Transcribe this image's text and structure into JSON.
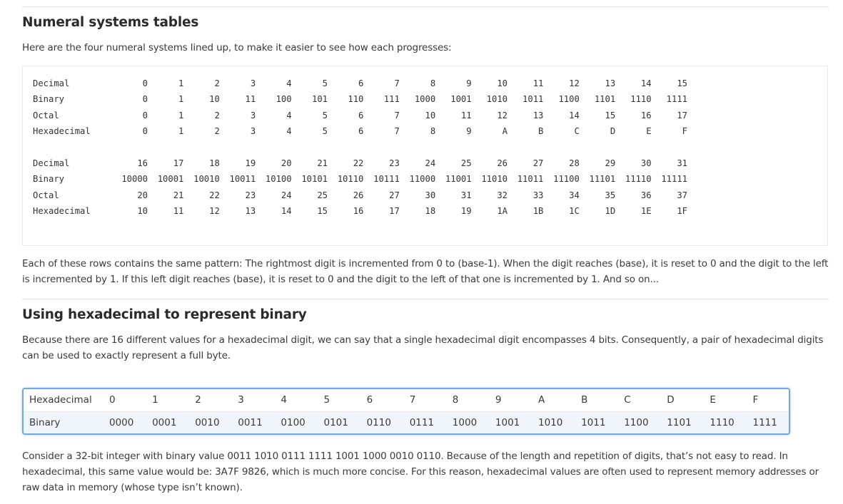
{
  "sections": {
    "numeral": {
      "heading": "Numeral systems tables",
      "intro": "Here are the four numeral systems lined up, to make it easier to see how each progresses:",
      "blocks": [
        {
          "rows": [
            {
              "label": "Decimal",
              "cells": [
                "0",
                "1",
                "2",
                "3",
                "4",
                "5",
                "6",
                "7",
                "8",
                "9",
                "10",
                "11",
                "12",
                "13",
                "14",
                "15"
              ]
            },
            {
              "label": "Binary",
              "cells": [
                "0",
                "1",
                "10",
                "11",
                "100",
                "101",
                "110",
                "111",
                "1000",
                "1001",
                "1010",
                "1011",
                "1100",
                "1101",
                "1110",
                "1111"
              ]
            },
            {
              "label": "Octal",
              "cells": [
                "0",
                "1",
                "2",
                "3",
                "4",
                "5",
                "6",
                "7",
                "10",
                "11",
                "12",
                "13",
                "14",
                "15",
                "16",
                "17"
              ]
            },
            {
              "label": "Hexadecimal",
              "cells": [
                "0",
                "1",
                "2",
                "3",
                "4",
                "5",
                "6",
                "7",
                "8",
                "9",
                "A",
                "B",
                "C",
                "D",
                "E",
                "F"
              ]
            }
          ]
        },
        {
          "rows": [
            {
              "label": "Decimal",
              "cells": [
                "16",
                "17",
                "18",
                "19",
                "20",
                "21",
                "22",
                "23",
                "24",
                "25",
                "26",
                "27",
                "28",
                "29",
                "30",
                "31"
              ]
            },
            {
              "label": "Binary",
              "cells": [
                "10000",
                "10001",
                "10010",
                "10011",
                "10100",
                "10101",
                "10110",
                "10111",
                "11000",
                "11001",
                "11010",
                "11011",
                "11100",
                "11101",
                "11110",
                "11111"
              ]
            },
            {
              "label": "Octal",
              "cells": [
                "20",
                "21",
                "22",
                "23",
                "24",
                "25",
                "26",
                "27",
                "30",
                "31",
                "32",
                "33",
                "34",
                "35",
                "36",
                "37"
              ]
            },
            {
              "label": "Hexadecimal",
              "cells": [
                "10",
                "11",
                "12",
                "13",
                "14",
                "15",
                "16",
                "17",
                "18",
                "19",
                "1A",
                "1B",
                "1C",
                "1D",
                "1E",
                "1F"
              ]
            }
          ]
        }
      ],
      "explanation": "Each of these rows contains the same pattern: The rightmost digit is incremented from 0 to (base-1). When the digit reaches (base), it is reset to 0 and the digit to the left is incremented by 1. If this left digit reaches (base), it is reset to 0 and the digit to the left of that one is incremented by 1. And so on..."
    },
    "hex_binary": {
      "heading": "Using hexadecimal to represent binary",
      "intro": "Because there are 16 different values for a hexadecimal digit, we can say that a single hexadecimal digit encompasses 4 bits. Consequently, a pair of hexadecimal digits can be used to exactly represent a full byte.",
      "table": {
        "rows": [
          {
            "label": "Hexadecimal",
            "cells": [
              "0",
              "1",
              "2",
              "3",
              "4",
              "5",
              "6",
              "7",
              "8",
              "9",
              "A",
              "B",
              "C",
              "D",
              "E",
              "F"
            ]
          },
          {
            "label": "Binary",
            "cells": [
              "0000",
              "0001",
              "0010",
              "0011",
              "0100",
              "0101",
              "0110",
              "0111",
              "1000",
              "1001",
              "1010",
              "1011",
              "1100",
              "1101",
              "1110",
              "1111"
            ]
          }
        ]
      },
      "conclusion": "Consider a 32-bit integer with binary value 0011 1010 0111 1111 1001 1000 0010 0110. Because of the length and repetition of digits, that’s not easy to read. In hexadecimal, this same value would be: 3A7F 9826, which is much more concise. For this reason, hexadecimal values are often used to represent memory addresses or raw data in memory (whose type isn’t known)."
    }
  },
  "colors": {
    "table_border": "#76a7da",
    "table_alt_row": "#f1f6fc",
    "text": "#3a3a3a"
  }
}
